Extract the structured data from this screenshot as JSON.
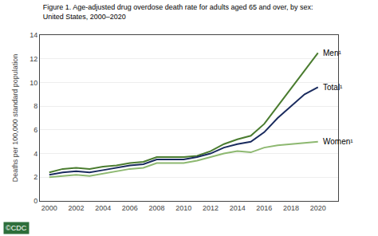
{
  "chart_data": {
    "type": "line",
    "title": "Figure 1. Age-adjusted drug overdose death rate for adults aged 65 and over, by sex:",
    "subtitle": "United States, 2000–2020",
    "y_label": "Deaths per 100,000 standard population",
    "x": [
      2000,
      2001,
      2002,
      2003,
      2004,
      2005,
      2006,
      2007,
      2008,
      2009,
      2010,
      2011,
      2012,
      2013,
      2014,
      2015,
      2016,
      2017,
      2018,
      2019,
      2020
    ],
    "series": [
      {
        "name": "Women¹",
        "color": "#8db870",
        "values": [
          2.0,
          2.1,
          2.2,
          2.1,
          2.3,
          2.5,
          2.7,
          2.8,
          3.2,
          3.2,
          3.2,
          3.4,
          3.7,
          4.0,
          4.2,
          4.1,
          4.5,
          4.7,
          4.8,
          4.9,
          5.0
        ]
      },
      {
        "name": "Men¹",
        "color": "#4a7c2f",
        "values": [
          2.4,
          2.7,
          2.8,
          2.7,
          2.9,
          3.0,
          3.2,
          3.3,
          3.7,
          3.7,
          3.7,
          3.8,
          4.2,
          4.8,
          5.2,
          5.5,
          6.5,
          8.0,
          9.5,
          11.0,
          12.5
        ]
      },
      {
        "name": "Total¹",
        "color": "#1a2b5e",
        "values": [
          2.2,
          2.4,
          2.5,
          2.4,
          2.6,
          2.8,
          3.0,
          3.1,
          3.5,
          3.5,
          3.5,
          3.7,
          4.0,
          4.5,
          4.8,
          5.0,
          5.8,
          7.0,
          8.0,
          9.0,
          9.6
        ]
      }
    ],
    "xlim": [
      1999.3,
      2021.5
    ],
    "xticks": [
      2000,
      2002,
      2004,
      2006,
      2008,
      2010,
      2012,
      2014,
      2016,
      2018,
      2020
    ],
    "ylim": [
      0,
      14
    ],
    "yticks": [
      0,
      2,
      4,
      6,
      8,
      10,
      12,
      14
    ],
    "grid": true,
    "annotations": [
      "©CDC"
    ]
  }
}
